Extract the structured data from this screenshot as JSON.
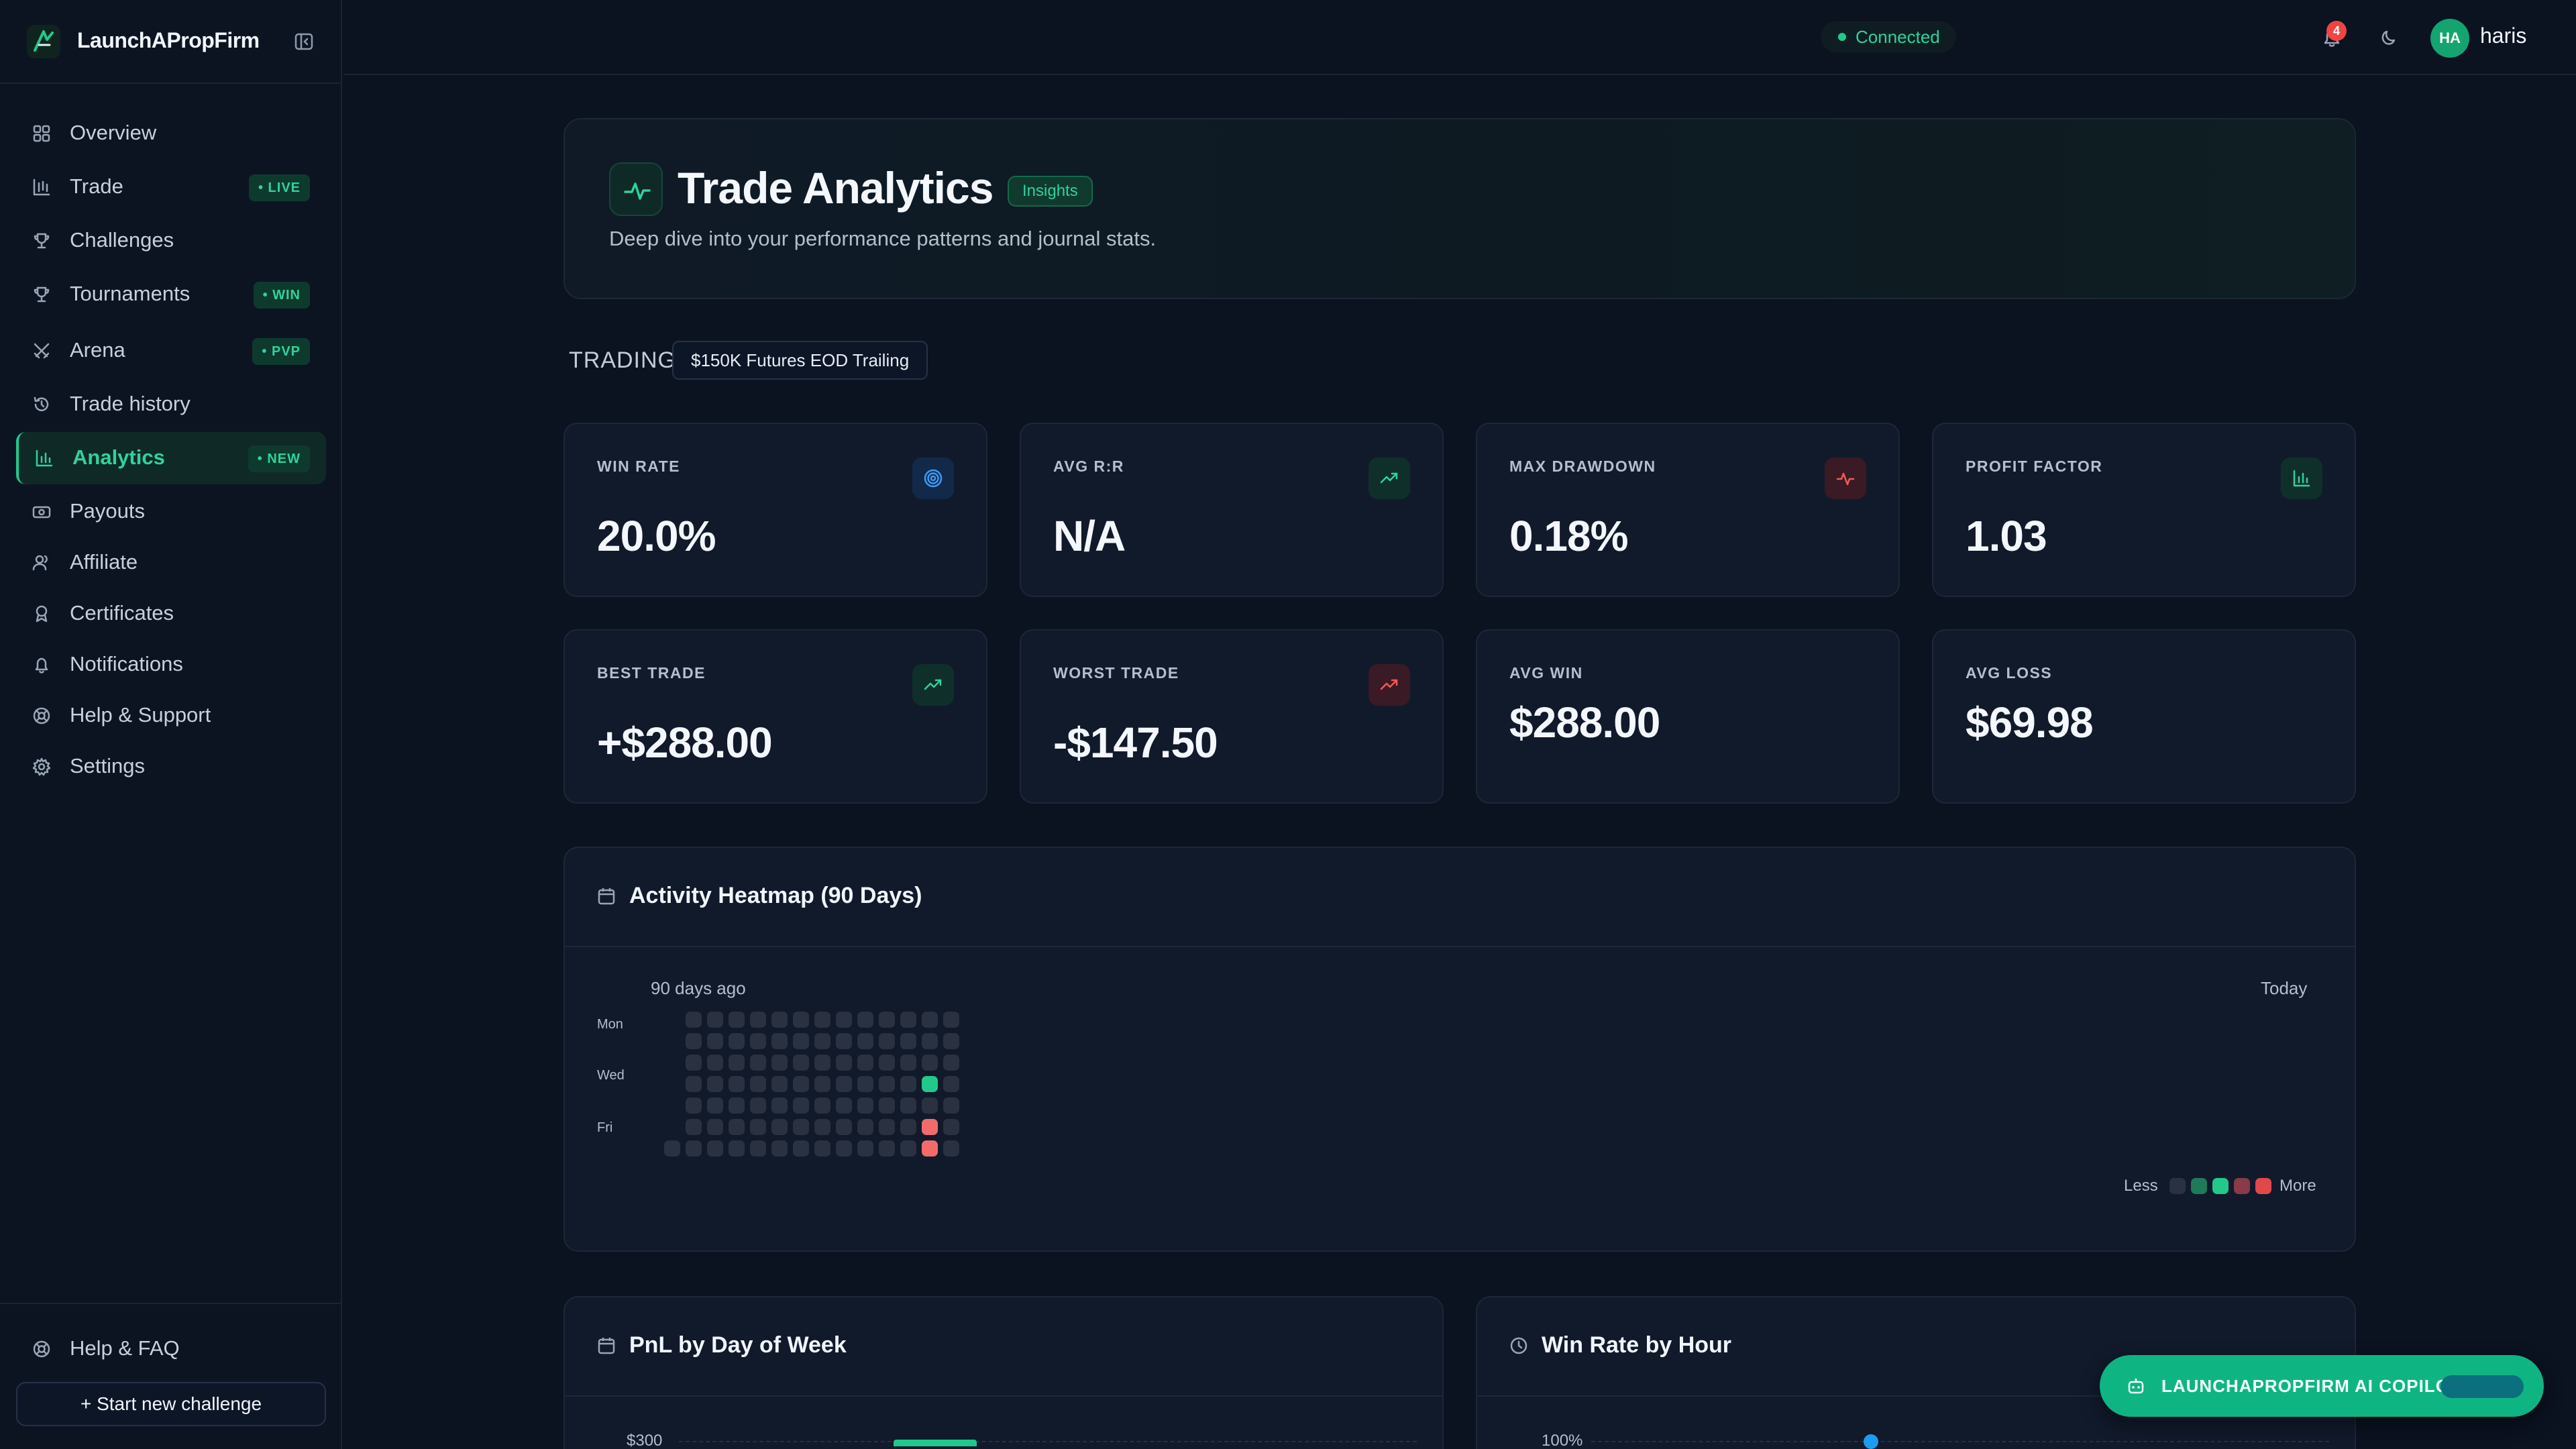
{
  "app": {
    "brand": "LaunchAPropFirm"
  },
  "nav": {
    "items": [
      {
        "label": "Overview",
        "icon": "grid-icon",
        "badge": ""
      },
      {
        "label": "Trade",
        "icon": "candlestick-icon",
        "badge": "• LIVE"
      },
      {
        "label": "Challenges",
        "icon": "trophy-icon",
        "badge": ""
      },
      {
        "label": "Tournaments",
        "icon": "trophy-icon",
        "badge": "• WIN"
      },
      {
        "label": "Arena",
        "icon": "swords-icon",
        "badge": "• PVP"
      },
      {
        "label": "Trade history",
        "icon": "history-icon",
        "badge": ""
      },
      {
        "label": "Analytics",
        "icon": "bar-chart-icon",
        "badge": "• NEW",
        "active": true
      },
      {
        "label": "Payouts",
        "icon": "banknote-icon",
        "badge": ""
      },
      {
        "label": "Affiliate",
        "icon": "users-icon",
        "badge": ""
      },
      {
        "label": "Certificates",
        "icon": "award-icon",
        "badge": ""
      },
      {
        "label": "Notifications",
        "icon": "bell-icon",
        "badge": ""
      },
      {
        "label": "Help & Support",
        "icon": "lifebuoy-icon",
        "badge": ""
      },
      {
        "label": "Settings",
        "icon": "gear-icon",
        "badge": ""
      }
    ],
    "help_faq": "Help & FAQ",
    "start_challenge": "+ Start new challenge"
  },
  "topbar": {
    "connection": "Connected",
    "notification_count": "4",
    "avatar_initials": "HA",
    "username": "haris"
  },
  "hero": {
    "title": "Trade Analytics",
    "badge": "Insights",
    "subtitle": "Deep dive into your performance patterns and journal stats."
  },
  "trading": {
    "label": "TRADING",
    "account": "$150K Futures EOD Trailing"
  },
  "stats": [
    {
      "label": "WIN RATE",
      "value": "20.0%",
      "icon": "target-icon",
      "tone": "blue"
    },
    {
      "label": "AVG R:R",
      "value": "N/A",
      "icon": "trending-up-icon",
      "tone": "green"
    },
    {
      "label": "MAX DRAWDOWN",
      "value": "0.18%",
      "icon": "activity-icon",
      "tone": "red"
    },
    {
      "label": "PROFIT FACTOR",
      "value": "1.03",
      "icon": "bar-chart-icon",
      "tone": "green"
    },
    {
      "label": "BEST TRADE",
      "value": "+$288.00",
      "icon": "trending-up-icon",
      "tone": "green"
    },
    {
      "label": "WORST TRADE",
      "value": "-$147.50",
      "icon": "trending-up-icon",
      "tone": "red"
    },
    {
      "label": "AVG WIN",
      "value": "$288.00",
      "icon": "",
      "tone": ""
    },
    {
      "label": "AVG LOSS",
      "value": "$69.98",
      "icon": "",
      "tone": ""
    }
  ],
  "heatmap": {
    "title": "Activity Heatmap (90 Days)",
    "start_label": "90 days ago",
    "end_label": "Today",
    "day_labels": [
      "Mon",
      "Wed",
      "Fri"
    ],
    "legend_less": "Less",
    "legend_more": "More",
    "columns": 14,
    "rows": 7,
    "active_cells": [
      {
        "col": 12,
        "row": 3,
        "level": "profit"
      },
      {
        "col": 12,
        "row": 5,
        "level": "loss"
      },
      {
        "col": 12,
        "row": 6,
        "level": "loss"
      }
    ],
    "colors": {
      "empty": "#2a3140",
      "profit": "#22c98a",
      "loss": "#f26b6b"
    },
    "legend_colors": [
      "#2a3140",
      "#1f7a5a",
      "#22c98a",
      "#8a3a48",
      "#e24848"
    ]
  },
  "pnl_by_day": {
    "title": "PnL by Day of Week",
    "first_tick": "$300"
  },
  "winrate_by_hour": {
    "title": "Win Rate by Hour",
    "first_tick": "100%"
  },
  "copilot": {
    "label": "LAUNCHAPROPFIRM AI COPILOT"
  }
}
